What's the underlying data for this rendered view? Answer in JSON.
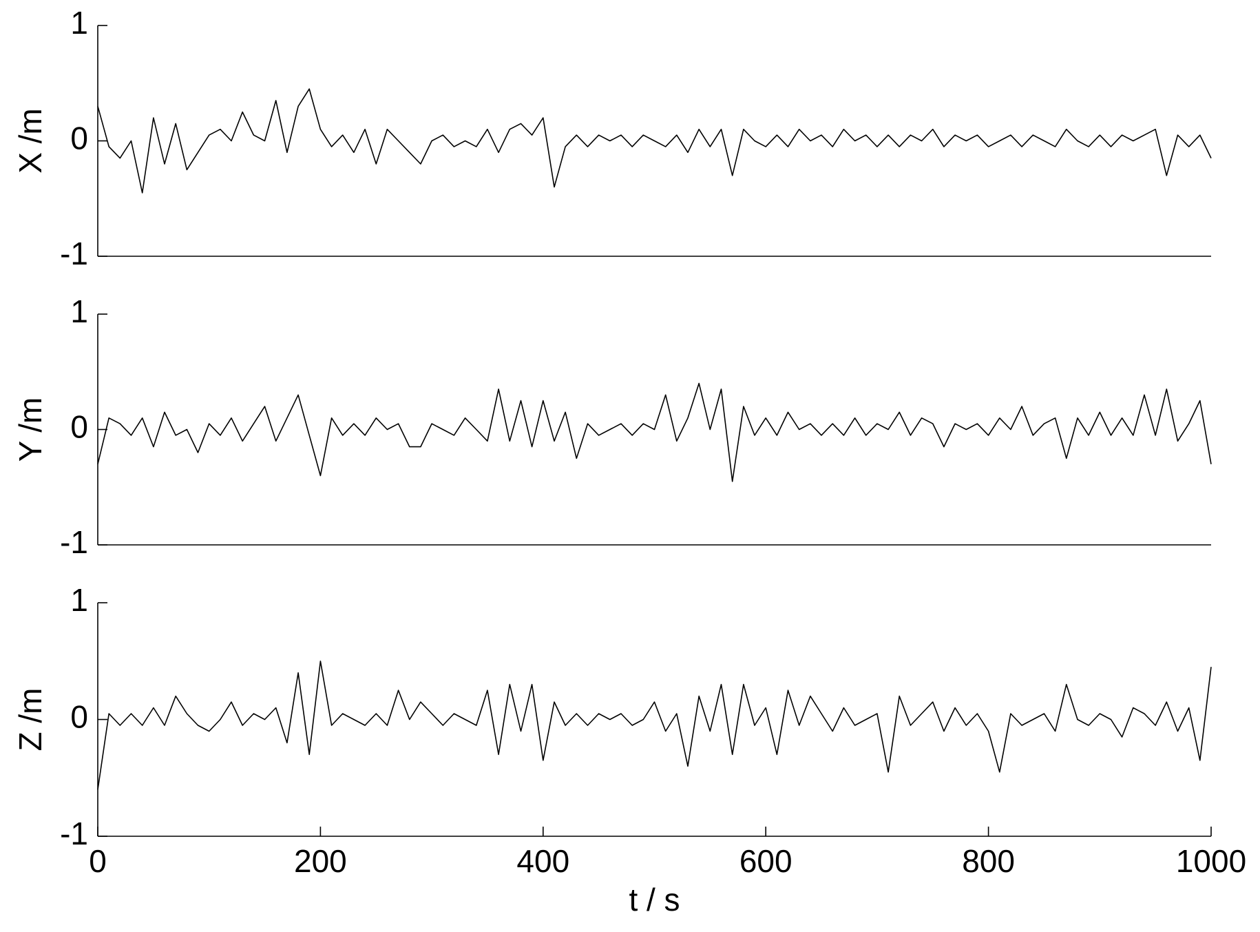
{
  "chart_data": [
    {
      "type": "line",
      "ylabel": "X /m",
      "xlim": [
        0,
        1000
      ],
      "ylim": [
        -1,
        1
      ],
      "yticks": [
        -1,
        0,
        1
      ],
      "color": "#000000",
      "x": [
        0,
        10,
        20,
        30,
        40,
        50,
        60,
        70,
        80,
        90,
        100,
        110,
        120,
        130,
        140,
        150,
        160,
        170,
        180,
        190,
        200,
        210,
        220,
        230,
        240,
        250,
        260,
        270,
        280,
        290,
        300,
        310,
        320,
        330,
        340,
        350,
        360,
        370,
        380,
        390,
        400,
        410,
        420,
        430,
        440,
        450,
        460,
        470,
        480,
        490,
        500,
        510,
        520,
        530,
        540,
        550,
        560,
        570,
        580,
        590,
        600,
        610,
        620,
        630,
        640,
        650,
        660,
        670,
        680,
        690,
        700,
        710,
        720,
        730,
        740,
        750,
        760,
        770,
        780,
        790,
        800,
        810,
        820,
        830,
        840,
        850,
        860,
        870,
        880,
        890,
        900,
        910,
        920,
        930,
        940,
        950,
        960,
        970,
        980,
        990,
        1000
      ],
      "values": [
        0.3,
        -0.05,
        -0.15,
        0.0,
        -0.45,
        0.2,
        -0.2,
        0.15,
        -0.25,
        -0.1,
        0.05,
        0.1,
        0.0,
        0.25,
        0.05,
        0.0,
        0.35,
        -0.1,
        0.3,
        0.45,
        0.1,
        -0.05,
        0.05,
        -0.1,
        0.1,
        -0.2,
        0.1,
        0.0,
        -0.1,
        -0.2,
        0.0,
        0.05,
        -0.05,
        0.0,
        -0.05,
        0.1,
        -0.1,
        0.1,
        0.15,
        0.05,
        0.2,
        -0.4,
        -0.05,
        0.05,
        -0.05,
        0.05,
        0.0,
        0.05,
        -0.05,
        0.05,
        0.0,
        -0.05,
        0.05,
        -0.1,
        0.1,
        -0.05,
        0.1,
        -0.3,
        0.1,
        0.0,
        -0.05,
        0.05,
        -0.05,
        0.1,
        0.0,
        0.05,
        -0.05,
        0.1,
        0.0,
        0.05,
        -0.05,
        0.05,
        -0.05,
        0.05,
        0.0,
        0.1,
        -0.05,
        0.05,
        0.0,
        0.05,
        -0.05,
        0.0,
        0.05,
        -0.05,
        0.05,
        0.0,
        -0.05,
        0.1,
        0.0,
        -0.05,
        0.05,
        -0.05,
        0.05,
        0.0,
        0.05,
        0.1,
        -0.3,
        0.05,
        -0.05,
        0.05,
        -0.15
      ]
    },
    {
      "type": "line",
      "ylabel": "Y /m",
      "xlim": [
        0,
        1000
      ],
      "ylim": [
        -1,
        1
      ],
      "yticks": [
        -1,
        0,
        1
      ],
      "color": "#000000",
      "x": [
        0,
        10,
        20,
        30,
        40,
        50,
        60,
        70,
        80,
        90,
        100,
        110,
        120,
        130,
        140,
        150,
        160,
        170,
        180,
        190,
        200,
        210,
        220,
        230,
        240,
        250,
        260,
        270,
        280,
        290,
        300,
        310,
        320,
        330,
        340,
        350,
        360,
        370,
        380,
        390,
        400,
        410,
        420,
        430,
        440,
        450,
        460,
        470,
        480,
        490,
        500,
        510,
        520,
        530,
        540,
        550,
        560,
        570,
        580,
        590,
        600,
        610,
        620,
        630,
        640,
        650,
        660,
        670,
        680,
        690,
        700,
        710,
        720,
        730,
        740,
        750,
        760,
        770,
        780,
        790,
        800,
        810,
        820,
        830,
        840,
        850,
        860,
        870,
        880,
        890,
        900,
        910,
        920,
        930,
        940,
        950,
        960,
        970,
        980,
        990,
        1000
      ],
      "values": [
        -0.3,
        0.1,
        0.05,
        -0.05,
        0.1,
        -0.15,
        0.15,
        -0.05,
        0.0,
        -0.2,
        0.05,
        -0.05,
        0.1,
        -0.1,
        0.05,
        0.2,
        -0.1,
        0.1,
        0.3,
        -0.05,
        -0.4,
        0.1,
        -0.05,
        0.05,
        -0.05,
        0.1,
        0.0,
        0.05,
        -0.15,
        -0.15,
        0.05,
        0.0,
        -0.05,
        0.1,
        0.0,
        -0.1,
        0.35,
        -0.1,
        0.25,
        -0.15,
        0.25,
        -0.1,
        0.15,
        -0.25,
        0.05,
        -0.05,
        0.0,
        0.05,
        -0.05,
        0.05,
        0.0,
        0.3,
        -0.1,
        0.1,
        0.4,
        0.0,
        0.35,
        -0.45,
        0.2,
        -0.05,
        0.1,
        -0.05,
        0.15,
        0.0,
        0.05,
        -0.05,
        0.05,
        -0.05,
        0.1,
        -0.05,
        0.05,
        0.0,
        0.15,
        -0.05,
        0.1,
        0.05,
        -0.15,
        0.05,
        0.0,
        0.05,
        -0.05,
        0.1,
        0.0,
        0.2,
        -0.05,
        0.05,
        0.1,
        -0.25,
        0.1,
        -0.05,
        0.15,
        -0.05,
        0.1,
        -0.05,
        0.3,
        -0.05,
        0.35,
        -0.1,
        0.05,
        0.25,
        -0.3
      ]
    },
    {
      "type": "line",
      "ylabel": "Z /m",
      "xlabel": "t / s",
      "xlim": [
        0,
        1000
      ],
      "xticks": [
        0,
        200,
        400,
        600,
        800,
        1000
      ],
      "ylim": [
        -1,
        1
      ],
      "yticks": [
        -1,
        0,
        1
      ],
      "color": "#000000",
      "x": [
        0,
        10,
        20,
        30,
        40,
        50,
        60,
        70,
        80,
        90,
        100,
        110,
        120,
        130,
        140,
        150,
        160,
        170,
        180,
        190,
        200,
        210,
        220,
        230,
        240,
        250,
        260,
        270,
        280,
        290,
        300,
        310,
        320,
        330,
        340,
        350,
        360,
        370,
        380,
        390,
        400,
        410,
        420,
        430,
        440,
        450,
        460,
        470,
        480,
        490,
        500,
        510,
        520,
        530,
        540,
        550,
        560,
        570,
        580,
        590,
        600,
        610,
        620,
        630,
        640,
        650,
        660,
        670,
        680,
        690,
        700,
        710,
        720,
        730,
        740,
        750,
        760,
        770,
        780,
        790,
        800,
        810,
        820,
        830,
        840,
        850,
        860,
        870,
        880,
        890,
        900,
        910,
        920,
        930,
        940,
        950,
        960,
        970,
        980,
        990,
        1000
      ],
      "values": [
        -0.6,
        0.05,
        -0.05,
        0.05,
        -0.05,
        0.1,
        -0.05,
        0.2,
        0.05,
        -0.05,
        -0.1,
        0.0,
        0.15,
        -0.05,
        0.05,
        0.0,
        0.1,
        -0.2,
        0.4,
        -0.3,
        0.5,
        -0.05,
        0.05,
        0.0,
        -0.05,
        0.05,
        -0.05,
        0.25,
        0.0,
        0.15,
        0.05,
        -0.05,
        0.05,
        0.0,
        -0.05,
        0.25,
        -0.3,
        0.3,
        -0.1,
        0.3,
        -0.35,
        0.15,
        -0.05,
        0.05,
        -0.05,
        0.05,
        0.0,
        0.05,
        -0.05,
        0.0,
        0.15,
        -0.1,
        0.05,
        -0.4,
        0.2,
        -0.1,
        0.3,
        -0.3,
        0.3,
        -0.05,
        0.1,
        -0.3,
        0.25,
        -0.05,
        0.2,
        0.05,
        -0.1,
        0.1,
        -0.05,
        0.0,
        0.05,
        -0.45,
        0.2,
        -0.05,
        0.05,
        0.15,
        -0.1,
        0.1,
        -0.05,
        0.05,
        -0.1,
        -0.45,
        0.05,
        -0.05,
        0.0,
        0.05,
        -0.1,
        0.3,
        0.0,
        -0.05,
        0.05,
        0.0,
        -0.15,
        0.1,
        0.05,
        -0.05,
        0.15,
        -0.1,
        0.1,
        -0.35,
        0.45
      ]
    }
  ]
}
